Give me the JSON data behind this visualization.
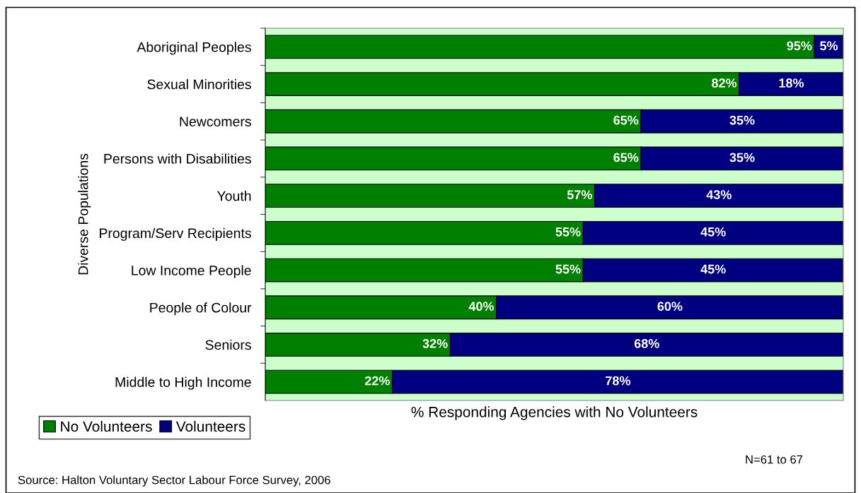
{
  "chart_data": {
    "type": "bar",
    "orientation": "horizontal",
    "stacked": true,
    "ylabel": "Diverse Populations",
    "xlabel": "% Responding Agencies with No Volunteers",
    "categories": [
      "Aboriginal Peoples",
      "Sexual Minorities",
      "Newcomers",
      "Persons with Disabilities",
      "Youth",
      "Program/Serv Recipients",
      "Low Income People",
      "People of Colour",
      "Seniors",
      "Middle to High Income"
    ],
    "series": [
      {
        "name": "No Volunteers",
        "color": "#008000",
        "values": [
          95,
          82,
          65,
          65,
          57,
          55,
          55,
          40,
          32,
          22
        ],
        "value_labels": [
          "95%",
          "82%",
          "65%",
          "65%",
          "57%",
          "55%",
          "55%",
          "40%",
          "32%",
          "22%"
        ]
      },
      {
        "name": "Volunteers",
        "color": "#000080",
        "values": [
          5,
          18,
          35,
          35,
          43,
          45,
          45,
          60,
          68,
          78
        ],
        "value_labels": [
          "5%",
          "18%",
          "35%",
          "35%",
          "43%",
          "45%",
          "45%",
          "60%",
          "68%",
          "78%"
        ]
      }
    ],
    "tick_labels": "y",
    "legend": "bottom left",
    "grid": false,
    "annotations": [
      "N=61 to 67",
      "Source: Halton Voluntary Sector Labour Force Survey, 2006"
    ]
  }
}
